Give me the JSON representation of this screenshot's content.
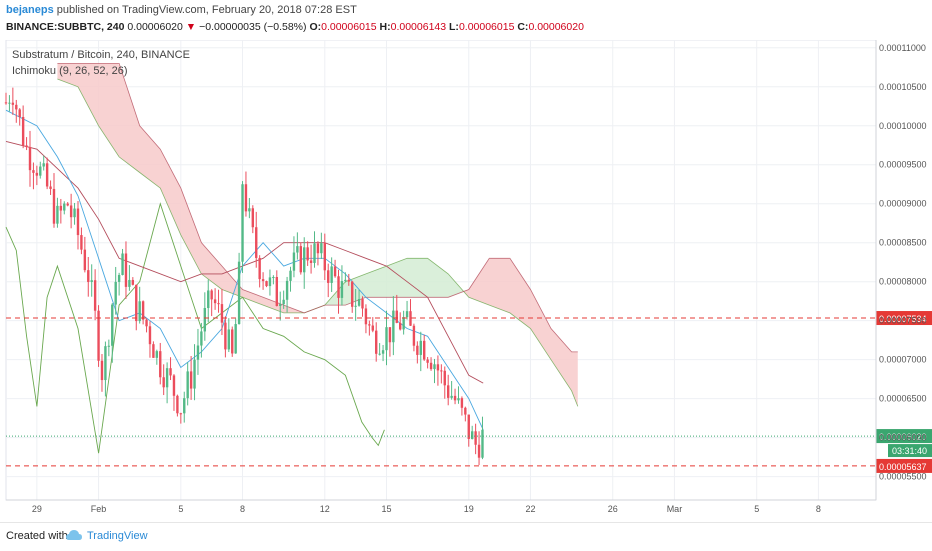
{
  "header": {
    "author": "bejaneps",
    "published": "published on TradingView.com, February 20, 2018 07:28 EST",
    "symbol": "BINANCE:SUBBTC, 240",
    "last": "0.00006020",
    "arrow": "▼",
    "change": "−0.00000035 (−0.58%)",
    "o_label": "O:",
    "o_value": "0.00006015",
    "h_label": "H:",
    "h_value": "0.00006143",
    "l_label": "L:",
    "l_value": "0.00006015",
    "c_label": "C:",
    "c_value": "0.00006020"
  },
  "footer": {
    "created": "Created with",
    "brand": "TradingView"
  },
  "colors": {
    "up": "#53b987",
    "down": "#eb4d5c",
    "tenkan": "#4aa8e0",
    "kijun": "#b44d5c",
    "chikou": "#6aa84f",
    "bull_cloud": "#d4ecd4",
    "bear_cloud": "#f7caca",
    "red_line": "#e53935",
    "last_line": "#3aa66f"
  },
  "chart_data": {
    "type": "candlestick",
    "title": "Substratum / Bitcoin, 240, BINANCE",
    "indicator": "Ichimoku (9, 26, 52, 26)",
    "timeframe": "240",
    "ylim": [
      5.2e-05,
      0.000111
    ],
    "y_ticks": [
      "0.00011000",
      "0.00010500",
      "0.00010000",
      "0.00009500",
      "0.00009000",
      "0.00008500",
      "0.00008000",
      "0.00007500",
      "0.00007000",
      "0.00006500",
      "0.00006000",
      "0.00005500"
    ],
    "y_tick_values": [
      0.00011,
      0.000105,
      0.0001,
      9.5e-05,
      9e-05,
      8.5e-05,
      8e-05,
      7.5e-05,
      7e-05,
      6.5e-05,
      6e-05,
      5.5e-05
    ],
    "x_ticks": [
      {
        "label": "29",
        "day": 0
      },
      {
        "label": "Feb",
        "day": 3
      },
      {
        "label": "5",
        "day": 7
      },
      {
        "label": "8",
        "day": 10
      },
      {
        "label": "12",
        "day": 14
      },
      {
        "label": "15",
        "day": 17
      },
      {
        "label": "19",
        "day": 21
      },
      {
        "label": "22",
        "day": 24
      },
      {
        "label": "26",
        "day": 28
      },
      {
        "label": "Mar",
        "day": 31
      },
      {
        "label": "5",
        "day": 35
      },
      {
        "label": "8",
        "day": 38
      }
    ],
    "x_range_days": [
      -1.5,
      40.8
    ],
    "last_day": 21.7,
    "horizontal_lines": [
      {
        "value": 7.534e-05,
        "label": "0.00007534",
        "style": "dashed-red"
      },
      {
        "value": 5.637e-05,
        "label": "0.00005637",
        "style": "dashed-red"
      },
      {
        "value": 6.02e-05,
        "label": "0.00006020",
        "style": "dotted-green",
        "countdown": "03:31:40"
      }
    ],
    "close_path": [
      [
        -1.5,
        0.000103
      ],
      [
        -1.2,
        0.000105
      ],
      [
        -0.8,
        0.0001
      ],
      [
        -0.5,
        9.7e-05
      ],
      [
        0,
        9.5e-05
      ],
      [
        0.5,
        9.2e-05
      ],
      [
        1,
        8.8e-05
      ],
      [
        1.5,
        9e-05
      ],
      [
        2,
        8.6e-05
      ],
      [
        2.5,
        8.1e-05
      ],
      [
        2.9,
        7.4e-05
      ],
      [
        3.2,
        6.8e-05
      ],
      [
        3.5,
        7.4e-05
      ],
      [
        3.8,
        8e-05
      ],
      [
        4.2,
        8.2e-05
      ],
      [
        4.8,
        7.7e-05
      ],
      [
        5.4,
        7.4e-05
      ],
      [
        5.9,
        7e-05
      ],
      [
        6.5,
        6.7e-05
      ],
      [
        7,
        6.4e-05
      ],
      [
        7.5,
        6.8e-05
      ],
      [
        8,
        7.4e-05
      ],
      [
        8.5,
        7.8e-05
      ],
      [
        9,
        7.5e-05
      ],
      [
        9.5,
        7e-05
      ],
      [
        9.8,
        7.8e-05
      ],
      [
        10,
        9.3e-05
      ],
      [
        10.3,
        8.8e-05
      ],
      [
        10.7,
        8.3e-05
      ],
      [
        11.2,
        8e-05
      ],
      [
        11.7,
        7.8e-05
      ],
      [
        12.2,
        8.1e-05
      ],
      [
        12.8,
        8.3e-05
      ],
      [
        13.3,
        8.4e-05
      ],
      [
        13.8,
        8.3e-05
      ],
      [
        14.3,
        8.1e-05
      ],
      [
        14.8,
        7.9e-05
      ],
      [
        15.3,
        7.8e-05
      ],
      [
        15.8,
        7.7e-05
      ],
      [
        16.3,
        7.3e-05
      ],
      [
        16.8,
        7.3e-05
      ],
      [
        17.3,
        7.4e-05
      ],
      [
        17.8,
        7.5e-05
      ],
      [
        18.3,
        7.3e-05
      ],
      [
        18.8,
        7.2e-05
      ],
      [
        19.3,
        7e-05
      ],
      [
        19.8,
        6.7e-05
      ],
      [
        20.3,
        6.5e-05
      ],
      [
        20.8,
        6.2e-05
      ],
      [
        21.3,
        5.9e-05
      ],
      [
        21.7,
        6.02e-05
      ]
    ],
    "tenkan": [
      [
        -1.5,
        0.000102
      ],
      [
        0,
        0.0001
      ],
      [
        1,
        9.6e-05
      ],
      [
        2,
        9.1e-05
      ],
      [
        3,
        8.3e-05
      ],
      [
        4,
        7.5e-05
      ],
      [
        5,
        7.6e-05
      ],
      [
        6,
        7.4e-05
      ],
      [
        7,
        6.9e-05
      ],
      [
        8,
        7.1e-05
      ],
      [
        9,
        7.4e-05
      ],
      [
        10,
        8.2e-05
      ],
      [
        11,
        8.5e-05
      ],
      [
        12,
        8.2e-05
      ],
      [
        13,
        8.3e-05
      ],
      [
        14,
        8.3e-05
      ],
      [
        15,
        8.1e-05
      ],
      [
        16,
        7.8e-05
      ],
      [
        17,
        7.6e-05
      ],
      [
        18,
        7.4e-05
      ],
      [
        19,
        7.3e-05
      ],
      [
        20,
        6.9e-05
      ],
      [
        21,
        6.5e-05
      ],
      [
        21.7,
        6.1e-05
      ]
    ],
    "kijun": [
      [
        -1.5,
        9.8e-05
      ],
      [
        0,
        9.7e-05
      ],
      [
        2,
        9.2e-05
      ],
      [
        3,
        8.8e-05
      ],
      [
        4,
        8.3e-05
      ],
      [
        5,
        8.2e-05
      ],
      [
        7,
        8e-05
      ],
      [
        8,
        8.1e-05
      ],
      [
        9,
        8.1e-05
      ],
      [
        10,
        8.2e-05
      ],
      [
        11,
        8.3e-05
      ],
      [
        12,
        8.5e-05
      ],
      [
        13,
        8.5e-05
      ],
      [
        14,
        8.5e-05
      ],
      [
        15,
        8.4e-05
      ],
      [
        16,
        8.3e-05
      ],
      [
        17,
        8.2e-05
      ],
      [
        18,
        8e-05
      ],
      [
        19,
        7.8e-05
      ],
      [
        20,
        7.3e-05
      ],
      [
        21,
        6.8e-05
      ],
      [
        21.7,
        6.7e-05
      ]
    ],
    "chikou": [
      [
        -1.5,
        8.7e-05
      ],
      [
        -1,
        8.4e-05
      ],
      [
        -0.5,
        7.3e-05
      ],
      [
        0,
        6.4e-05
      ],
      [
        0.5,
        7.8e-05
      ],
      [
        1,
        8.2e-05
      ],
      [
        2,
        7.4e-05
      ],
      [
        3,
        5.8e-05
      ],
      [
        4,
        7.7e-05
      ],
      [
        5,
        8e-05
      ],
      [
        6,
        9e-05
      ],
      [
        7,
        8.2e-05
      ],
      [
        8,
        7.4e-05
      ],
      [
        9,
        7.6e-05
      ],
      [
        10,
        7.8e-05
      ],
      [
        11,
        7.4e-05
      ],
      [
        12,
        7.3e-05
      ],
      [
        13,
        7.1e-05
      ],
      [
        14,
        7e-05
      ],
      [
        15,
        6.8e-05
      ],
      [
        15.8,
        6.2e-05
      ],
      [
        16.3,
        6e-05
      ],
      [
        16.6,
        5.9e-05
      ],
      [
        16.9,
        6.1e-05
      ]
    ],
    "senkou_a": [
      [
        1,
        0.000106
      ],
      [
        2,
        0.000105
      ],
      [
        3,
        0.0001
      ],
      [
        4,
        9.6e-05
      ],
      [
        5,
        9.4e-05
      ],
      [
        6,
        9.2e-05
      ],
      [
        7,
        8.6e-05
      ],
      [
        8,
        8.1e-05
      ],
      [
        9,
        7.9e-05
      ],
      [
        10,
        7.8e-05
      ],
      [
        11,
        7.7e-05
      ],
      [
        12,
        7.6e-05
      ],
      [
        13,
        7.6e-05
      ],
      [
        14,
        7.7e-05
      ],
      [
        15,
        8e-05
      ],
      [
        16,
        8.1e-05
      ],
      [
        17,
        8.2e-05
      ],
      [
        18,
        8.3e-05
      ],
      [
        19,
        8.3e-05
      ],
      [
        20,
        8.1e-05
      ],
      [
        21,
        7.8e-05
      ],
      [
        22,
        7.7e-05
      ],
      [
        23,
        7.6e-05
      ],
      [
        24,
        7.4e-05
      ],
      [
        25,
        7e-05
      ],
      [
        26,
        6.6e-05
      ],
      [
        26.3,
        6.4e-05
      ]
    ],
    "senkou_b": [
      [
        1,
        0.000108
      ],
      [
        2,
        0.000108
      ],
      [
        3,
        0.000108
      ],
      [
        4,
        0.000108
      ],
      [
        5,
        0.0001
      ],
      [
        6,
        9.7e-05
      ],
      [
        7,
        9.2e-05
      ],
      [
        8,
        8.5e-05
      ],
      [
        9,
        8.2e-05
      ],
      [
        10,
        7.9e-05
      ],
      [
        11,
        7.8e-05
      ],
      [
        12,
        7.7e-05
      ],
      [
        13,
        7.6e-05
      ],
      [
        14,
        7.7e-05
      ],
      [
        15,
        7.7e-05
      ],
      [
        16,
        7.8e-05
      ],
      [
        17,
        7.8e-05
      ],
      [
        18,
        7.8e-05
      ],
      [
        19,
        7.8e-05
      ],
      [
        20,
        7.8e-05
      ],
      [
        21,
        7.9e-05
      ],
      [
        22,
        8.3e-05
      ],
      [
        23,
        8.3e-05
      ],
      [
        24,
        7.9e-05
      ],
      [
        25,
        7.4e-05
      ],
      [
        26,
        7.1e-05
      ],
      [
        26.3,
        7.1e-05
      ]
    ]
  }
}
